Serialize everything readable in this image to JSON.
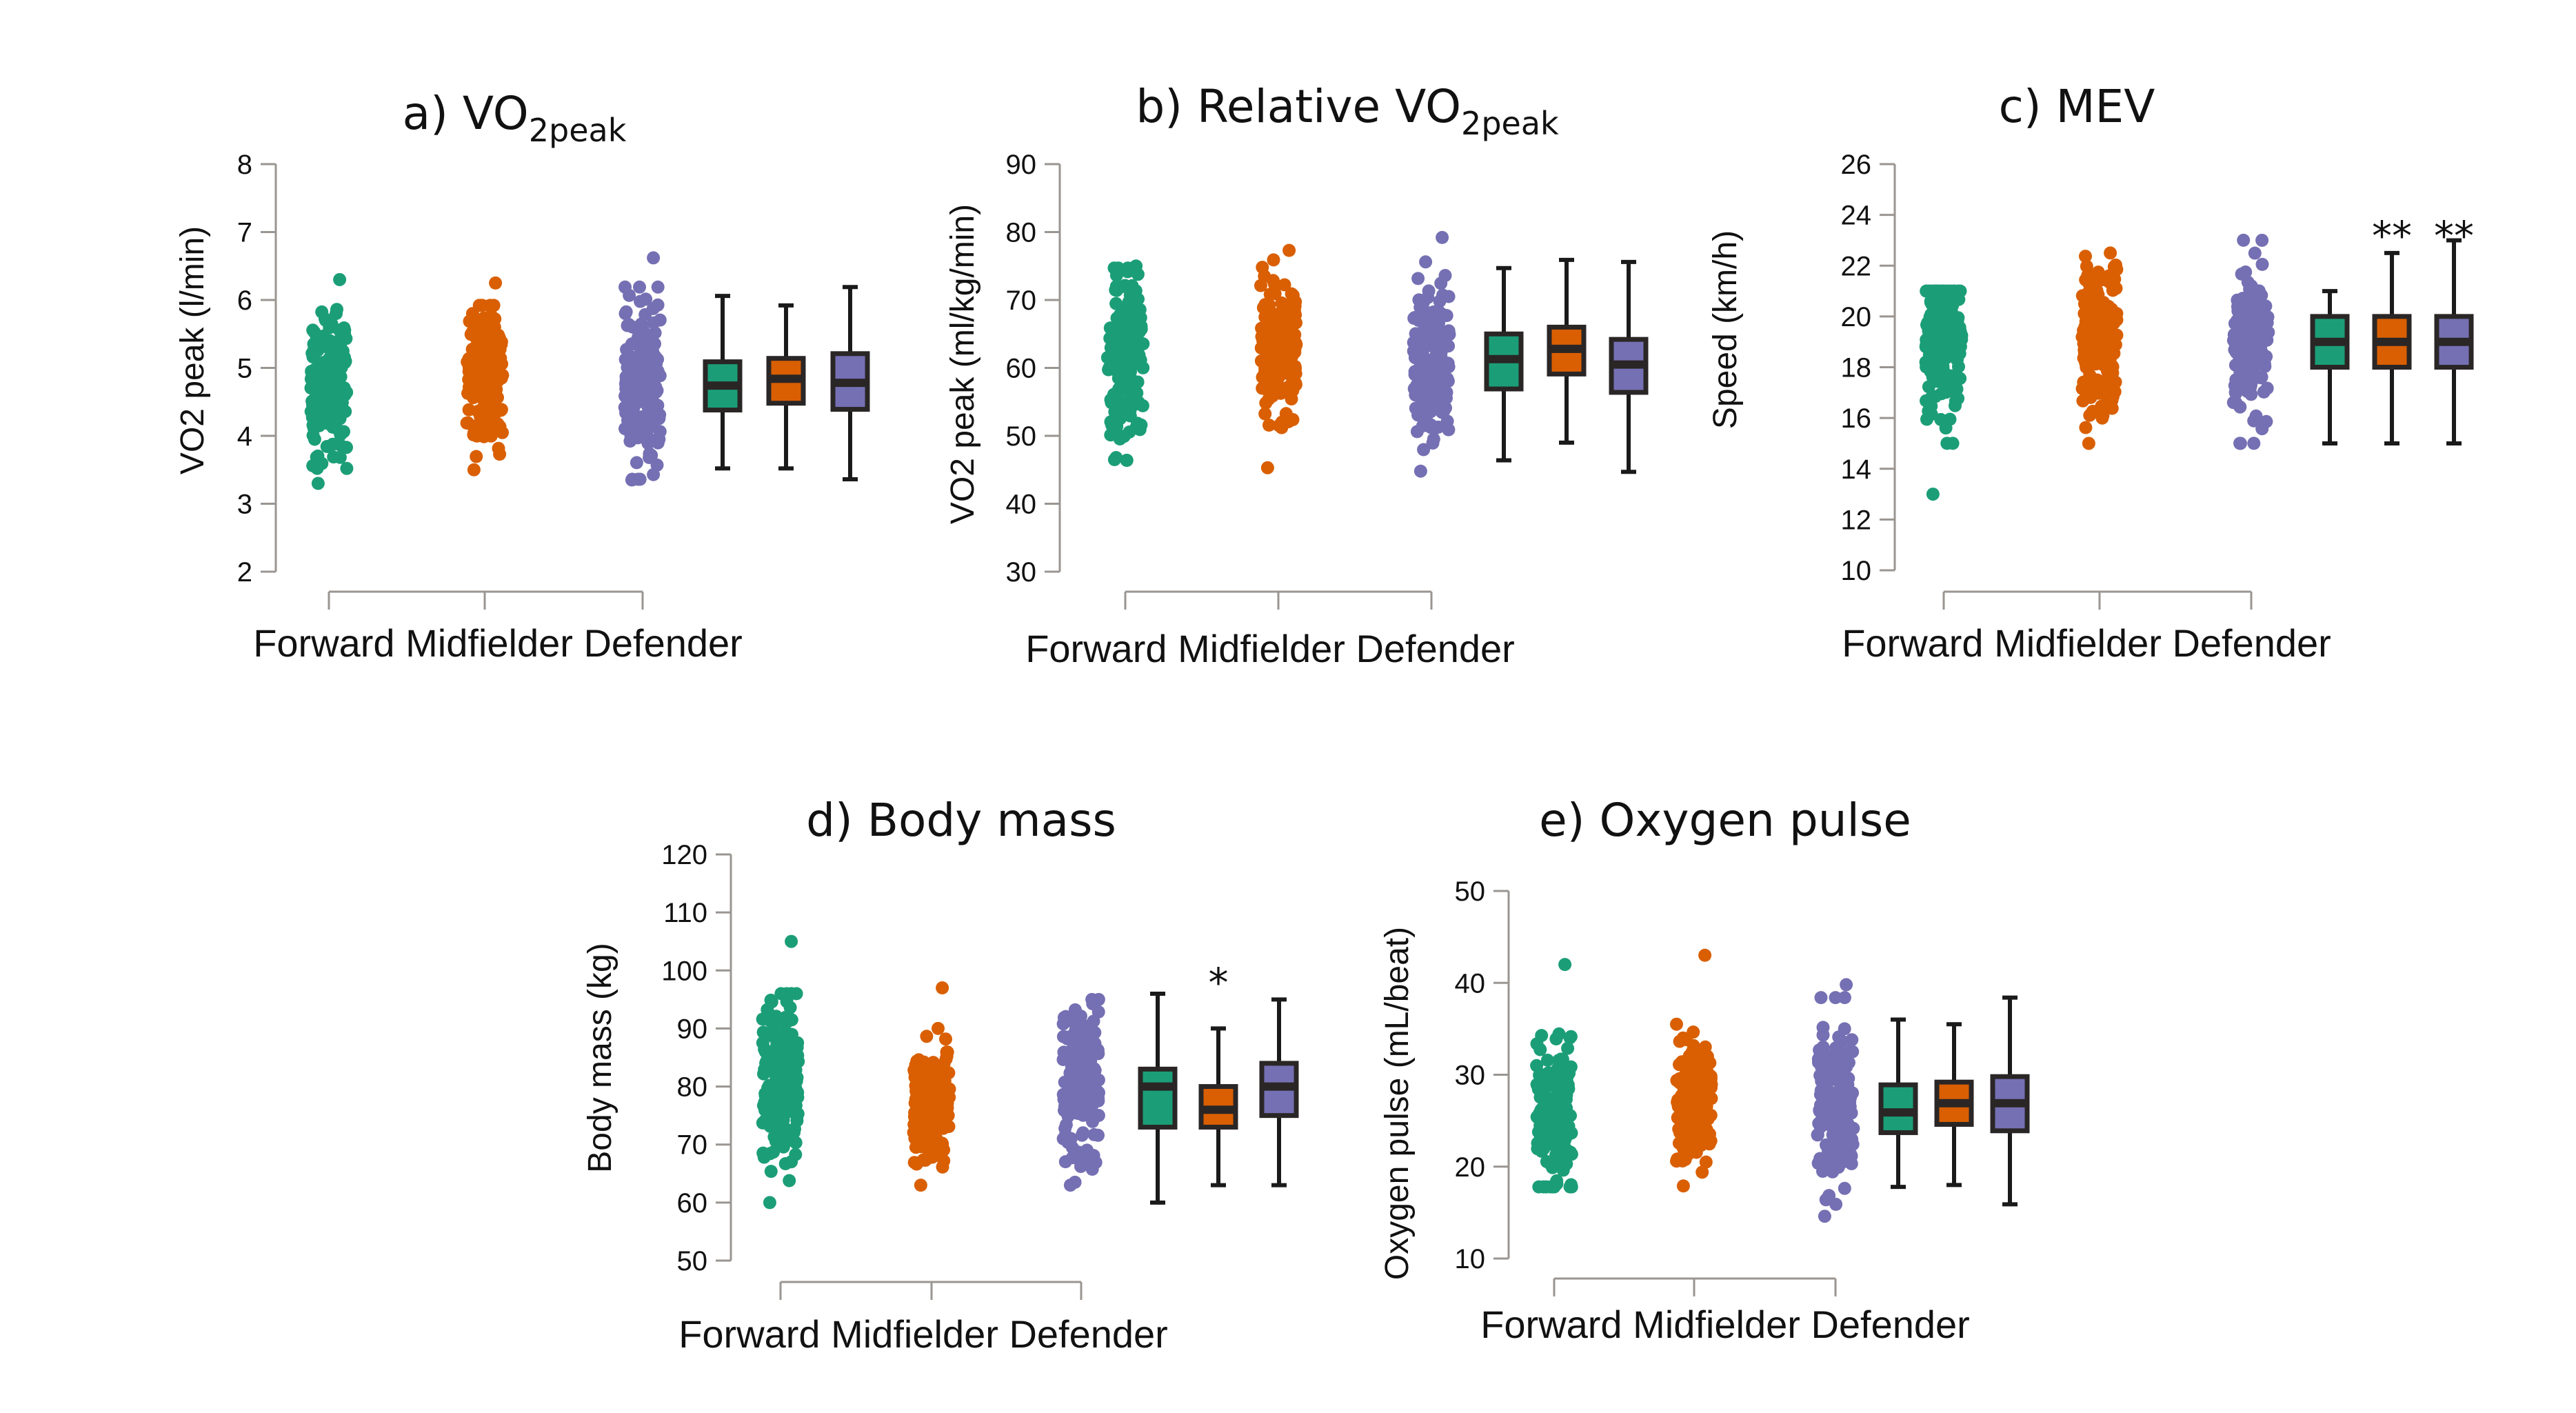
{
  "figure": {
    "categories": [
      "Forward",
      "Midfielder",
      "Defender"
    ],
    "category_axis_label": "Forward Midfielder Defender",
    "colors": {
      "Forward": "#1b9e77",
      "Midfielder": "#d95f02",
      "Defender": "#7570b3"
    },
    "box_outline_color": "#2a2626"
  },
  "chart_data": [
    {
      "id": "a",
      "type": "box",
      "title": "a) VO",
      "title_subscript": "2peak",
      "ylabel": "VO2 peak (l/min)",
      "xlabel": "Forward Midfielder Defender",
      "ylim": [
        2,
        8
      ],
      "yticks": [
        2,
        3,
        4,
        5,
        6,
        7,
        8
      ],
      "series": [
        {
          "name": "Forward",
          "whisker_low": 3.52,
          "q1": 4.38,
          "median": 4.74,
          "q3": 5.09,
          "whisker_high": 6.06,
          "points_min": 3.3,
          "points_max": 6.3,
          "significance": ""
        },
        {
          "name": "Midfielder",
          "whisker_low": 3.52,
          "q1": 4.48,
          "median": 4.84,
          "q3": 5.14,
          "whisker_high": 5.92,
          "points_min": 3.5,
          "points_max": 6.25,
          "significance": ""
        },
        {
          "name": "Defender",
          "whisker_low": 3.36,
          "q1": 4.39,
          "median": 4.78,
          "q3": 5.21,
          "whisker_high": 6.19,
          "points_min": 3.35,
          "points_max": 6.62,
          "significance": ""
        }
      ]
    },
    {
      "id": "b",
      "type": "box",
      "title": "b) Relative VO",
      "title_subscript": "2peak",
      "ylabel": "VO2 peak (ml/kg/min)",
      "xlabel": "Forward Midfielder Defender",
      "ylim": [
        30,
        90
      ],
      "yticks": [
        30,
        40,
        50,
        60,
        70,
        80,
        90
      ],
      "series": [
        {
          "name": "Forward",
          "whisker_low": 46.4,
          "q1": 56.9,
          "median": 61.3,
          "q3": 65.0,
          "whisker_high": 74.7,
          "points_min": 46.5,
          "points_max": 75,
          "significance": ""
        },
        {
          "name": "Midfielder",
          "whisker_low": 49.0,
          "q1": 59.1,
          "median": 62.8,
          "q3": 66.0,
          "whisker_high": 75.9,
          "points_min": 45.3,
          "points_max": 77.3,
          "significance": ""
        },
        {
          "name": "Defender",
          "whisker_low": 44.7,
          "q1": 56.4,
          "median": 60.5,
          "q3": 64.2,
          "whisker_high": 75.6,
          "points_min": 44.8,
          "points_max": 79.2,
          "significance": ""
        }
      ]
    },
    {
      "id": "c",
      "type": "box",
      "title": "c) MEV",
      "title_subscript": "",
      "ylabel": "Speed (km/h)",
      "xlabel": "Forward Midfielder Defender",
      "ylim": [
        10,
        26
      ],
      "yticks": [
        10,
        12,
        14,
        16,
        18,
        20,
        22,
        24,
        26
      ],
      "series": [
        {
          "name": "Forward",
          "whisker_low": 15,
          "q1": 18,
          "median": 19,
          "q3": 20,
          "whisker_high": 21,
          "points_min": 13,
          "points_max": 21,
          "significance": ""
        },
        {
          "name": "Midfielder",
          "whisker_low": 15,
          "q1": 18,
          "median": 19,
          "q3": 20,
          "whisker_high": 22.5,
          "points_min": 15,
          "points_max": 22.5,
          "significance": "**"
        },
        {
          "name": "Defender",
          "whisker_low": 15,
          "q1": 18,
          "median": 19,
          "q3": 20,
          "whisker_high": 23,
          "points_min": 15,
          "points_max": 23,
          "significance": "**"
        }
      ]
    },
    {
      "id": "d",
      "type": "box",
      "title": "d) Body mass",
      "title_subscript": "",
      "ylabel": "Body mass (kg)",
      "xlabel": "Forward Midfielder Defender",
      "ylim": [
        50,
        120
      ],
      "yticks": [
        50,
        60,
        70,
        80,
        90,
        100,
        110,
        120
      ],
      "series": [
        {
          "name": "Forward",
          "whisker_low": 60,
          "q1": 73,
          "median": 80,
          "q3": 83,
          "whisker_high": 96,
          "points_min": 60,
          "points_max": 105,
          "significance": ""
        },
        {
          "name": "Midfielder",
          "whisker_low": 63,
          "q1": 73,
          "median": 76,
          "q3": 80,
          "whisker_high": 90,
          "points_min": 63,
          "points_max": 97,
          "significance": "*"
        },
        {
          "name": "Defender",
          "whisker_low": 63,
          "q1": 75,
          "median": 80,
          "q3": 84,
          "whisker_high": 95,
          "points_min": 63,
          "points_max": 95,
          "significance": ""
        }
      ]
    },
    {
      "id": "e",
      "type": "box",
      "title": "e) Oxygen pulse",
      "title_subscript": "",
      "ylabel": "Oxygen pulse (mL/beat)",
      "xlabel": "Forward Midfielder Defender",
      "ylim": [
        10,
        50
      ],
      "yticks": [
        10,
        20,
        30,
        40,
        50
      ],
      "series": [
        {
          "name": "Forward",
          "whisker_low": 17.8,
          "q1": 23.7,
          "median": 25.9,
          "q3": 28.9,
          "whisker_high": 36,
          "points_min": 17.8,
          "points_max": 42,
          "significance": ""
        },
        {
          "name": "Midfielder",
          "whisker_low": 18,
          "q1": 24.6,
          "median": 26.9,
          "q3": 29.2,
          "whisker_high": 35.5,
          "points_min": 17.9,
          "points_max": 43,
          "significance": ""
        },
        {
          "name": "Defender",
          "whisker_low": 15.9,
          "q1": 23.9,
          "median": 26.9,
          "q3": 29.8,
          "whisker_high": 38.4,
          "points_min": 14.6,
          "points_max": 39.8,
          "significance": ""
        }
      ]
    }
  ]
}
